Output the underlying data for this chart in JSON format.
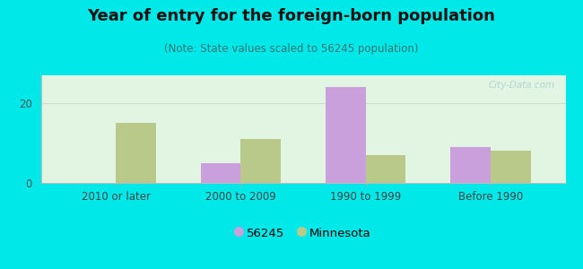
{
  "title": "Year of entry for the foreign-born population",
  "subtitle": "(Note: State values scaled to 56245 population)",
  "categories": [
    "2010 or later",
    "2000 to 2009",
    "1990 to 1999",
    "Before 1990"
  ],
  "values_56245": [
    0,
    5,
    24,
    9
  ],
  "values_minnesota": [
    15,
    11,
    7,
    8
  ],
  "color_56245": "#c9a0dc",
  "color_minnesota": "#b8c98a",
  "background_outer": "#00e8e8",
  "background_inner": "#e2f5e2",
  "ylim": [
    0,
    27
  ],
  "yticks": [
    0,
    20
  ],
  "bar_width": 0.32,
  "legend_label_56245": "56245",
  "legend_label_minnesota": "Minnesota",
  "title_fontsize": 13,
  "subtitle_fontsize": 8.5,
  "tick_fontsize": 8.5,
  "legend_fontsize": 9.5
}
